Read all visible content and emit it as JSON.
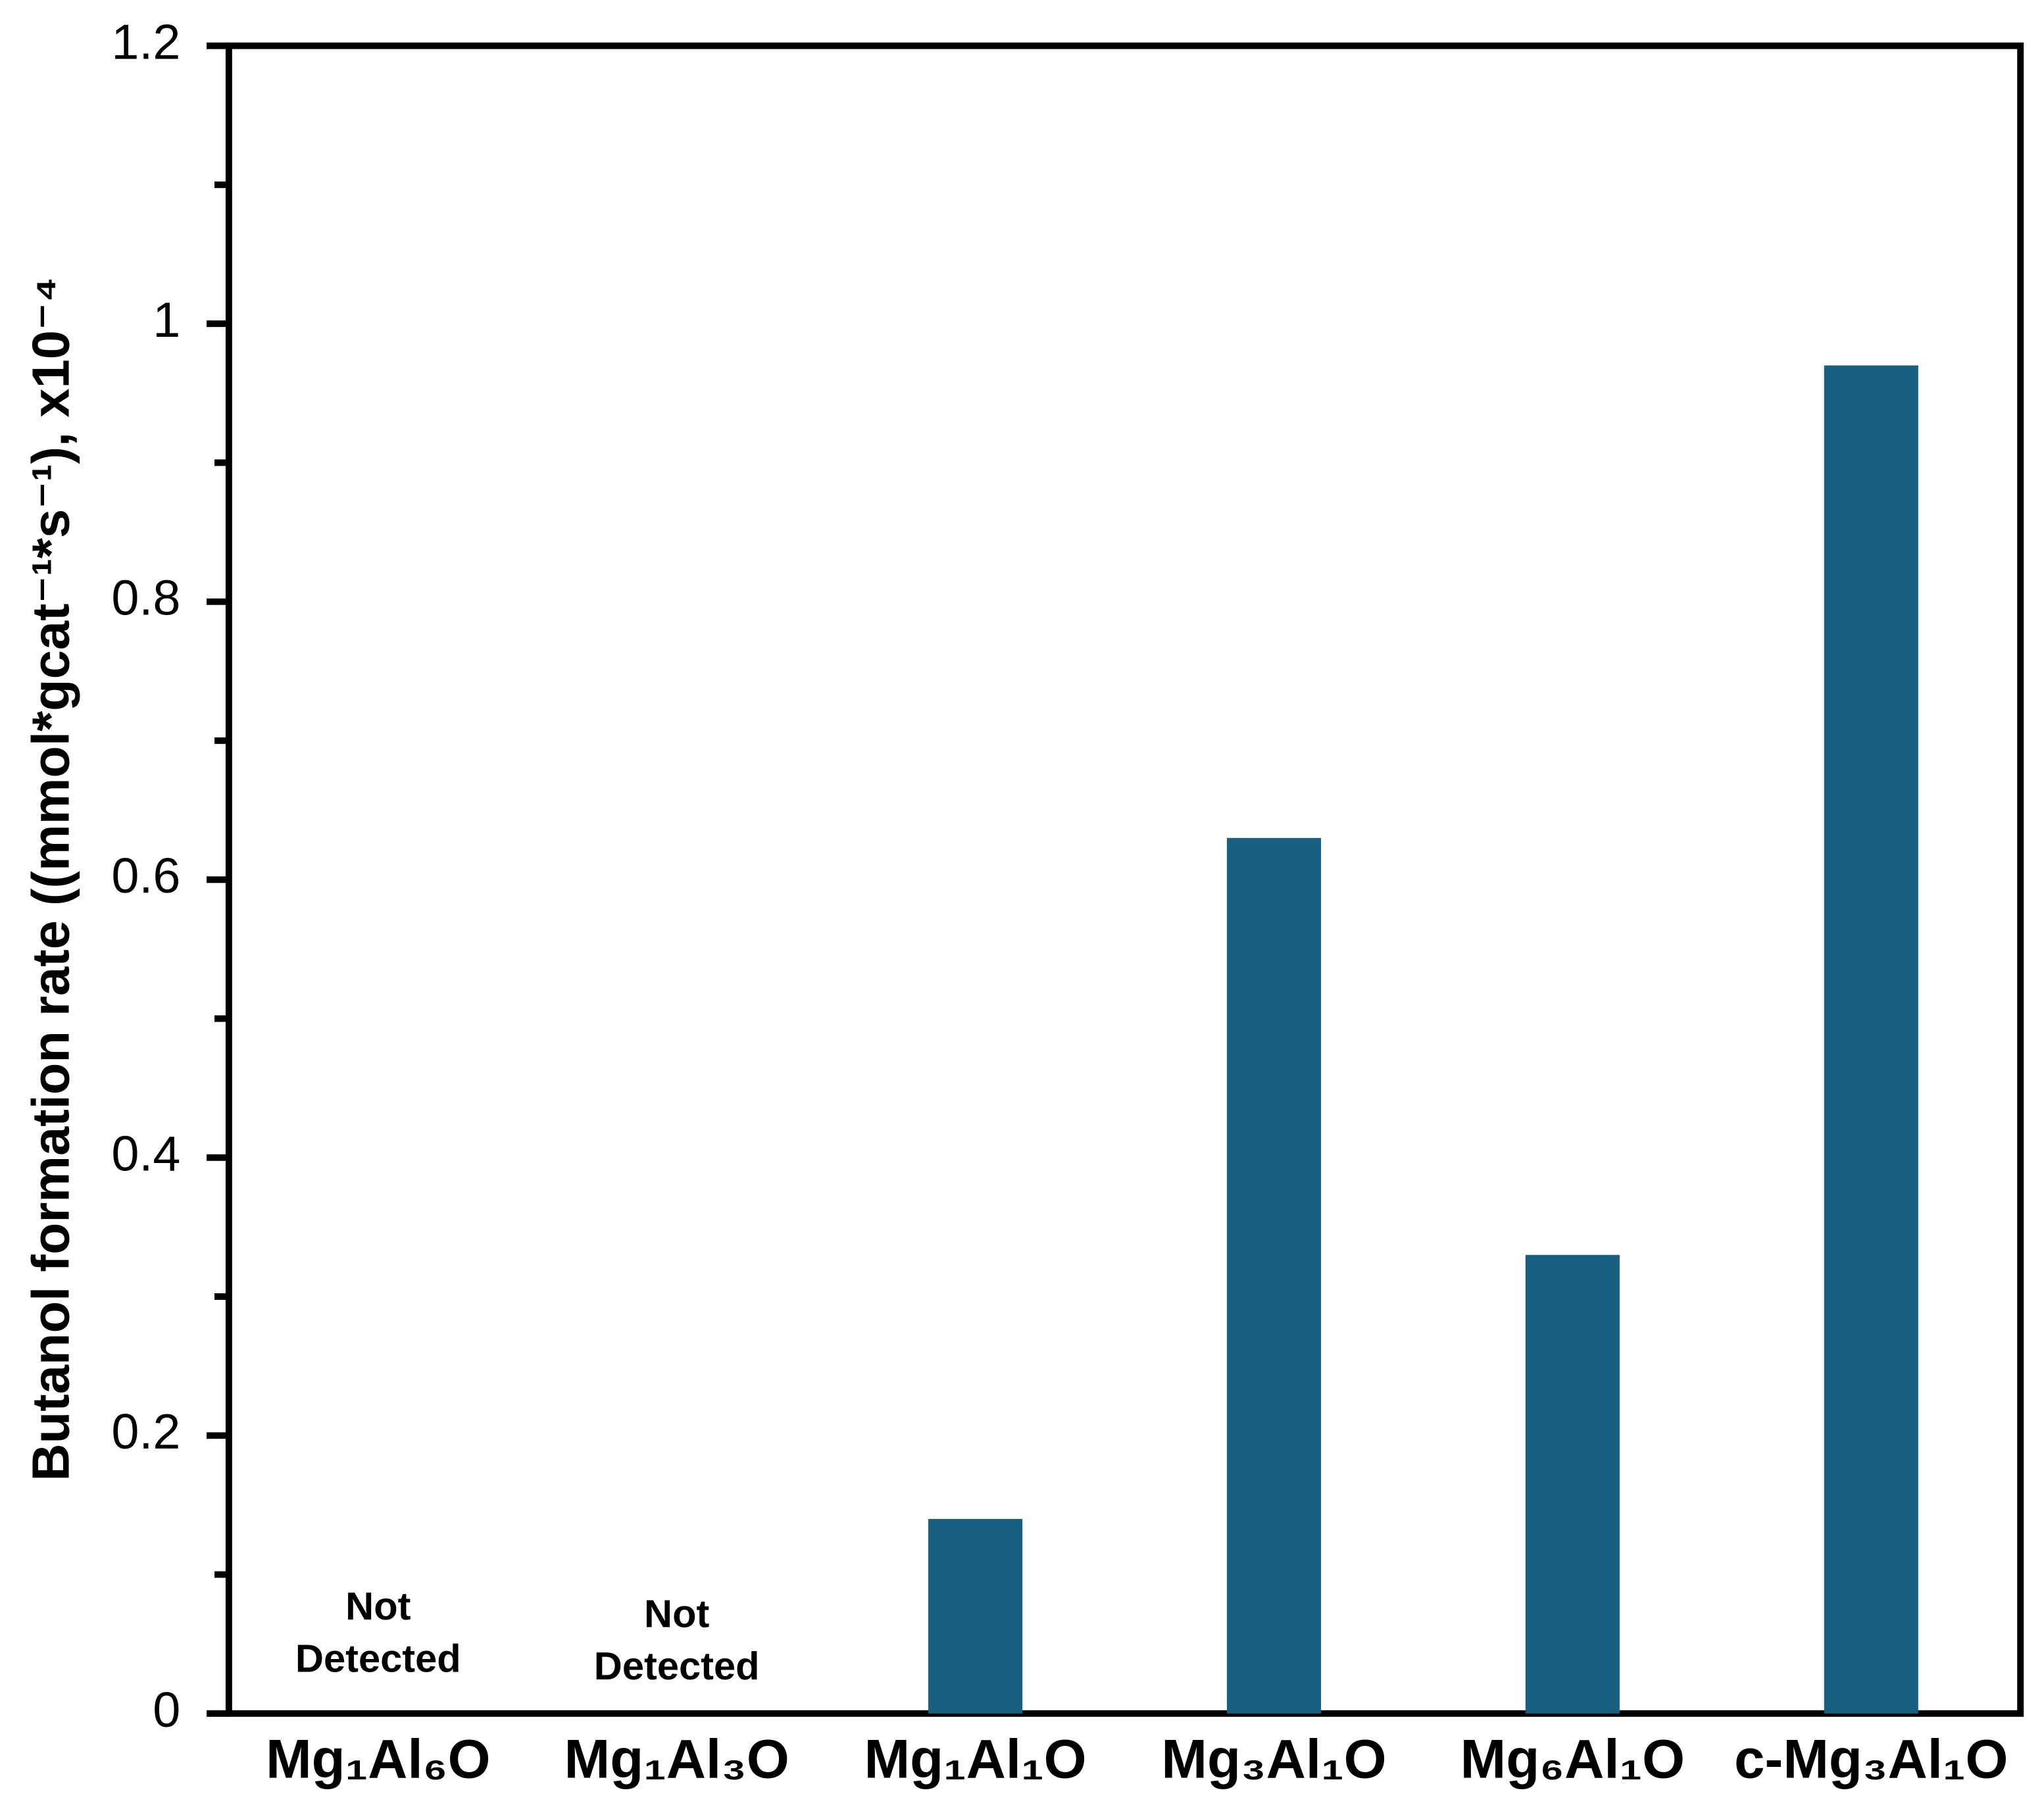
{
  "chart_data": {
    "type": "bar",
    "y_label": "Butanol formation rate ((mmol*gcat⁻¹*s⁻¹), x10⁻⁴",
    "categories": [
      "Mg₁Al₆O",
      "Mg₁Al₃O",
      "Mg₁Al₁O",
      "Mg₃Al₁O",
      "Mg₆Al₁O",
      "c-Mg₃Al₁O"
    ],
    "values": [
      null,
      null,
      0.14,
      0.63,
      0.33,
      0.97
    ],
    "value_labels": [
      "Not Detected",
      "Not Detected",
      null,
      null,
      null,
      null
    ],
    "color": "#185f82",
    "ylim": [
      0,
      1.2
    ],
    "yticks": [
      0,
      0.2,
      0.4,
      0.6,
      0.8,
      1,
      1.2
    ],
    "yticks_minor": [
      0.1,
      0.3,
      0.5,
      0.7,
      0.9,
      1.1
    ],
    "grid": false
  }
}
